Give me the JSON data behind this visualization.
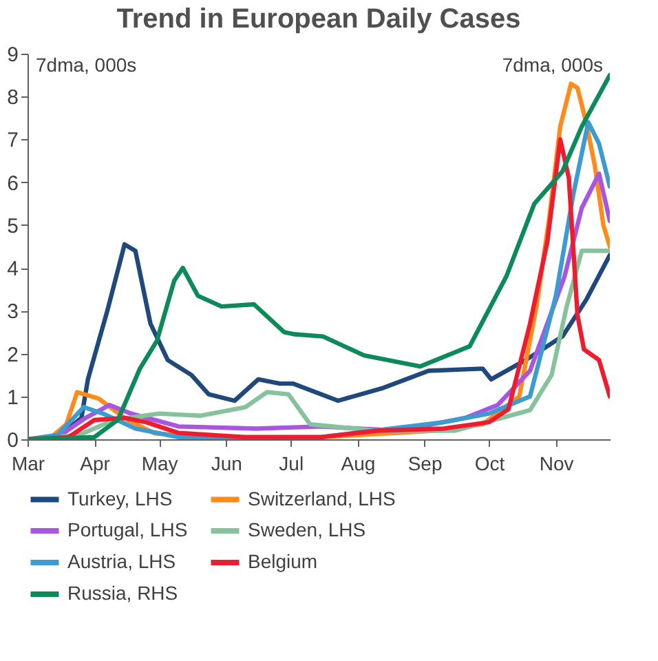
{
  "chart_data": {
    "type": "line",
    "title": "Trend in European Daily Cases",
    "annotations": [
      "7dma, 000s",
      "7dma, 000s"
    ],
    "xlim": [
      "--03-01",
      "--11-26"
    ],
    "xticks": [
      {
        "value": "--03-01",
        "label": "Mar"
      },
      {
        "value": "--04-01",
        "label": "Apr"
      },
      {
        "value": "--05-01",
        "label": "May"
      },
      {
        "value": "--06-01",
        "label": "Jun"
      },
      {
        "value": "--07-01",
        "label": "Jul"
      },
      {
        "value": "--08-01",
        "label": "Aug"
      },
      {
        "value": "--09-01",
        "label": "Sep"
      },
      {
        "value": "--10-01",
        "label": "Oct"
      },
      {
        "value": "--11-01",
        "label": "Nov"
      }
    ],
    "ylim": [
      0,
      9
    ],
    "yticks": [
      0,
      1,
      2,
      3,
      4,
      5,
      6,
      7,
      8,
      9
    ],
    "grid": false,
    "legend": "bottom",
    "marker": "none",
    "line_style": "solid",
    "series": [
      {
        "name": "Turkey, LHS",
        "color": "#1f497d",
        "x": [
          "--03-01",
          "--03-15",
          "--03-26",
          "--03-29",
          "--04-07",
          "--04-15",
          "--04-20",
          "--04-27",
          "--05-05",
          "--05-16",
          "--05-24",
          "--06-05",
          "--06-16",
          "--06-26",
          "--07-02",
          "--07-23",
          "--08-13",
          "--09-03",
          "--09-28",
          "--10-02",
          "--10-18",
          "--11-04",
          "--11-15",
          "--11-26"
        ],
        "values": [
          0,
          0.05,
          0.5,
          1.4,
          3.0,
          4.55,
          4.4,
          2.7,
          1.85,
          1.5,
          1.05,
          0.9,
          1.4,
          1.3,
          1.3,
          0.9,
          1.2,
          1.6,
          1.65,
          1.4,
          1.85,
          2.4,
          3.25,
          4.3
        ]
      },
      {
        "name": "Switzerland, LHS",
        "color": "#ff8c1a",
        "x": [
          "--03-01",
          "--03-12",
          "--03-19",
          "--03-24",
          "--04-03",
          "--04-16",
          "--04-29",
          "--05-20",
          "--07-15",
          "--09-06",
          "--09-28",
          "--10-15",
          "--10-23",
          "--10-29",
          "--11-03",
          "--11-08",
          "--11-11",
          "--11-15",
          "--11-19",
          "--11-23",
          "--11-26"
        ],
        "values": [
          0,
          0.05,
          0.35,
          1.1,
          0.95,
          0.46,
          0.14,
          0.05,
          0.05,
          0.2,
          0.35,
          1.0,
          3.1,
          5.2,
          7.3,
          8.3,
          8.2,
          7.4,
          6.4,
          5.0,
          4.5
        ]
      },
      {
        "name": "Portugal, LHS",
        "color": "#a855e0",
        "x": [
          "--03-01",
          "--03-15",
          "--03-28",
          "--04-08",
          "--04-18",
          "--05-10",
          "--06-15",
          "--07-15",
          "--08-20",
          "--09-20",
          "--10-05",
          "--10-20",
          "--11-05",
          "--11-13",
          "--11-21",
          "--11-26"
        ],
        "values": [
          0,
          0.05,
          0.5,
          0.8,
          0.6,
          0.3,
          0.25,
          0.3,
          0.2,
          0.5,
          0.8,
          1.6,
          3.8,
          5.4,
          6.2,
          5.1
        ]
      },
      {
        "name": "Sweden, LHS",
        "color": "#86c29b",
        "x": [
          "--03-01",
          "--03-25",
          "--04-10",
          "--05-01",
          "--05-20",
          "--06-10",
          "--06-20",
          "--06-30",
          "--07-10",
          "--08-10",
          "--09-15",
          "--10-20",
          "--10-30",
          "--11-06",
          "--11-13",
          "--11-26"
        ],
        "values": [
          0,
          0.1,
          0.45,
          0.6,
          0.55,
          0.75,
          1.1,
          1.05,
          0.35,
          0.2,
          0.2,
          0.68,
          1.5,
          3.1,
          4.4,
          4.4
        ]
      },
      {
        "name": "Austria, LHS",
        "color": "#3c9bd0",
        "x": [
          "--03-01",
          "--03-15",
          "--03-27",
          "--04-05",
          "--04-20",
          "--05-10",
          "--07-15",
          "--09-10",
          "--10-01",
          "--10-20",
          "--11-01",
          "--11-09",
          "--11-16",
          "--11-21",
          "--11-26"
        ],
        "values": [
          0,
          0.1,
          0.75,
          0.6,
          0.25,
          0.05,
          0.05,
          0.4,
          0.6,
          1.0,
          3.35,
          5.7,
          7.4,
          6.9,
          5.9
        ]
      },
      {
        "name": "Belgium",
        "color": "#ee1c2e",
        "x": [
          "--03-01",
          "--03-20",
          "--04-01",
          "--04-15",
          "--04-25",
          "--05-10",
          "--06-10",
          "--07-15",
          "--08-10",
          "--09-10",
          "--10-01",
          "--10-10",
          "--10-20",
          "--10-28",
          "--11-03",
          "--11-07",
          "--11-11",
          "--11-14",
          "--11-21",
          "--11-26"
        ],
        "values": [
          0,
          0.05,
          0.45,
          0.5,
          0.4,
          0.15,
          0.05,
          0.05,
          0.2,
          0.25,
          0.4,
          0.7,
          2.7,
          4.6,
          7.0,
          6.1,
          2.9,
          2.1,
          1.85,
          1.0
        ]
      },
      {
        "name": "Russia, RHS",
        "color": "#0d8a5a",
        "x": [
          "--03-01",
          "--04-01",
          "--04-12",
          "--04-22",
          "--04-30",
          "--05-08",
          "--05-12",
          "--05-19",
          "--05-30",
          "--06-14",
          "--06-28",
          "--07-03",
          "--07-16",
          "--08-04",
          "--08-30",
          "--09-22",
          "--10-09",
          "--10-22",
          "--11-04",
          "--11-13",
          "--11-26"
        ],
        "values": [
          0,
          0.05,
          0.46,
          1.64,
          2.3,
          3.7,
          4.0,
          3.35,
          3.1,
          3.15,
          2.5,
          2.45,
          2.4,
          1.96,
          1.7,
          2.17,
          3.8,
          5.5,
          6.25,
          7.3,
          8.5
        ]
      }
    ]
  }
}
